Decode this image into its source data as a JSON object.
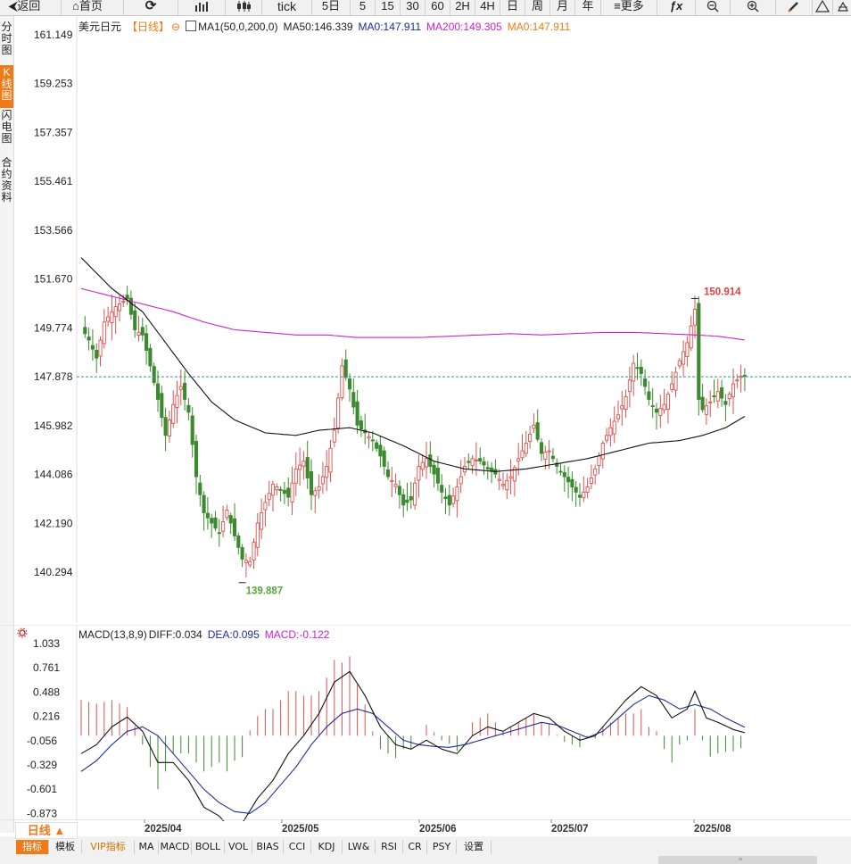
{
  "toolbar": {
    "back": "返回",
    "home": "首页",
    "refresh_icon": "refresh-icon",
    "bar_icon": "bar-chart-icon",
    "candle_icon": "candlestick-icon",
    "tick": "tick",
    "five_day": "5日",
    "m5": "5",
    "m15": "15",
    "m30": "30",
    "m60": "60",
    "h2": "2H",
    "h4": "4H",
    "day": "日",
    "week": "周",
    "month": "月",
    "year": "年",
    "more": "更多",
    "fx": "ƒx"
  },
  "left_tabs": [
    {
      "label": "分时图"
    },
    {
      "label": "K线图"
    },
    {
      "label": "闪电图"
    },
    {
      "label": "合约资料"
    }
  ],
  "legend": {
    "symbol": "美元日元",
    "period": "【日线】",
    "ma_settings": "MA1(50,0,200,0)",
    "ma50": "MA50:146.339",
    "ma0a": "MA0:147.911",
    "ma200": "MA200:149.305",
    "ma0b": "MA0:147.911"
  },
  "macd_legend": {
    "name": "MACD(13,8,9)",
    "diff": "DIFF:0.034",
    "dea": "DEA:0.095",
    "macd": "MACD:-0.122"
  },
  "bottom": {
    "period_button": "日线 ▲",
    "tabs": [
      "指标",
      "模板",
      "VIP指标",
      "MA",
      "MACD",
      "BOLL",
      "VOL",
      "BIAS",
      "CCI",
      "KDJ",
      "LW&",
      "RSI",
      "CR",
      "PSY",
      "设置"
    ]
  },
  "colors": {
    "up": "#d9534f",
    "down": "#3a8a2e",
    "ma50": "#111111",
    "ma200": "#cc22cc",
    "last_line": "#2a9d8f",
    "high_label": "#e04040",
    "low_label": "#5aa53c",
    "accent": "#f07a17",
    "dea": "#1f2a9a"
  },
  "chart_data": [
    {
      "type": "candlestick",
      "title": "美元日元【日线】",
      "y_ticks": [
        "161.149",
        "159.253",
        "157.357",
        "155.461",
        "153.566",
        "151.670",
        "149.774",
        "147.878",
        "145.982",
        "144.086",
        "142.190",
        "140.294"
      ],
      "ylim": [
        139.6,
        161.149
      ],
      "x_ticks": [
        "2025/04",
        "2025/05",
        "2025/06",
        "2025/07",
        "2025/08"
      ],
      "last_price": 147.878,
      "high_label": "150.914",
      "low_label": "139.887",
      "grid": false,
      "close_path": [
        [
          0,
          149.8
        ],
        [
          2,
          149.3
        ],
        [
          4,
          148.6
        ],
        [
          6,
          150.0
        ],
        [
          9,
          150.6
        ],
        [
          12,
          150.9
        ],
        [
          14,
          149.7
        ],
        [
          16,
          149.5
        ],
        [
          18,
          148.3
        ],
        [
          20,
          147.0
        ],
        [
          22,
          145.6
        ],
        [
          24,
          146.8
        ],
        [
          26,
          147.5
        ],
        [
          28,
          146.5
        ],
        [
          30,
          144.0
        ],
        [
          32,
          142.6
        ],
        [
          34,
          142.2
        ],
        [
          36,
          141.8
        ],
        [
          38,
          142.7
        ],
        [
          40,
          141.7
        ],
        [
          42,
          140.8
        ],
        [
          44,
          140.7
        ],
        [
          46,
          142.2
        ],
        [
          48,
          143.0
        ],
        [
          50,
          143.7
        ],
        [
          52,
          143.5
        ],
        [
          54,
          143.2
        ],
        [
          56,
          144.3
        ],
        [
          58,
          144.6
        ],
        [
          60,
          143.3
        ],
        [
          62,
          143.6
        ],
        [
          64,
          144.4
        ],
        [
          66,
          145.8
        ],
        [
          68,
          148.3
        ],
        [
          70,
          147.4
        ],
        [
          72,
          146.0
        ],
        [
          74,
          145.7
        ],
        [
          76,
          145.4
        ],
        [
          78,
          144.8
        ],
        [
          80,
          144.0
        ],
        [
          82,
          143.7
        ],
        [
          84,
          142.9
        ],
        [
          86,
          143.1
        ],
        [
          88,
          144.4
        ],
        [
          90,
          144.7
        ],
        [
          92,
          144.1
        ],
        [
          94,
          143.4
        ],
        [
          96,
          142.9
        ],
        [
          98,
          143.6
        ],
        [
          100,
          144.4
        ],
        [
          102,
          144.7
        ],
        [
          104,
          144.6
        ],
        [
          106,
          144.3
        ],
        [
          108,
          144.1
        ],
        [
          110,
          143.7
        ],
        [
          112,
          144.0
        ],
        [
          114,
          144.7
        ],
        [
          116,
          145.3
        ],
        [
          118,
          146.0
        ],
        [
          120,
          144.9
        ],
        [
          122,
          145.0
        ],
        [
          124,
          144.4
        ],
        [
          126,
          144.0
        ],
        [
          128,
          143.6
        ],
        [
          130,
          143.2
        ],
        [
          132,
          143.6
        ],
        [
          134,
          144.3
        ],
        [
          136,
          145.3
        ],
        [
          138,
          145.9
        ],
        [
          140,
          146.4
        ],
        [
          142,
          147.1
        ],
        [
          144,
          148.4
        ],
        [
          146,
          148.0
        ],
        [
          148,
          147.0
        ],
        [
          150,
          146.5
        ],
        [
          152,
          146.8
        ],
        [
          154,
          147.6
        ],
        [
          156,
          148.5
        ],
        [
          158,
          149.2
        ],
        [
          160,
          150.5
        ],
        [
          161,
          147.0
        ],
        [
          162,
          146.6
        ],
        [
          164,
          146.9
        ],
        [
          166,
          147.3
        ],
        [
          168,
          146.8
        ],
        [
          170,
          147.6
        ],
        [
          172,
          147.9
        ],
        [
          173,
          147.9
        ]
      ],
      "ma50": [
        [
          0,
          152.5
        ],
        [
          8,
          151.3
        ],
        [
          16,
          150.4
        ],
        [
          22,
          149.2
        ],
        [
          28,
          148.0
        ],
        [
          34,
          146.9
        ],
        [
          40,
          146.2
        ],
        [
          48,
          145.7
        ],
        [
          56,
          145.6
        ],
        [
          62,
          145.8
        ],
        [
          70,
          145.9
        ],
        [
          76,
          145.7
        ],
        [
          84,
          145.2
        ],
        [
          92,
          144.6
        ],
        [
          100,
          144.3
        ],
        [
          108,
          144.2
        ],
        [
          116,
          144.3
        ],
        [
          124,
          144.5
        ],
        [
          132,
          144.7
        ],
        [
          140,
          145.0
        ],
        [
          148,
          145.3
        ],
        [
          156,
          145.4
        ],
        [
          162,
          145.6
        ],
        [
          168,
          145.9
        ],
        [
          173,
          146.34
        ]
      ],
      "ma200": [
        [
          0,
          151.3
        ],
        [
          8,
          151.0
        ],
        [
          16,
          150.7
        ],
        [
          24,
          150.4
        ],
        [
          32,
          150.0
        ],
        [
          40,
          149.7
        ],
        [
          48,
          149.6
        ],
        [
          56,
          149.5
        ],
        [
          64,
          149.5
        ],
        [
          72,
          149.4
        ],
        [
          80,
          149.4
        ],
        [
          88,
          149.4
        ],
        [
          96,
          149.45
        ],
        [
          104,
          149.5
        ],
        [
          112,
          149.55
        ],
        [
          120,
          149.5
        ],
        [
          128,
          149.55
        ],
        [
          136,
          149.6
        ],
        [
          144,
          149.6
        ],
        [
          152,
          149.55
        ],
        [
          160,
          149.5
        ],
        [
          166,
          149.45
        ],
        [
          173,
          149.305
        ]
      ]
    },
    {
      "type": "macd",
      "title": "MACD(13,8,9)",
      "y_ticks": [
        "1.033",
        "0.761",
        "0.488",
        "0.216",
        "-0.056",
        "-0.329",
        "-0.601",
        "-0.873"
      ],
      "ylim": [
        -1.09,
        1.15
      ],
      "diff": [
        [
          0,
          -0.2
        ],
        [
          4,
          -0.1
        ],
        [
          8,
          0.1
        ],
        [
          12,
          0.21
        ],
        [
          16,
          0.05
        ],
        [
          20,
          -0.3
        ],
        [
          24,
          -0.3
        ],
        [
          28,
          -0.5
        ],
        [
          32,
          -0.8
        ],
        [
          36,
          -0.9
        ],
        [
          38,
          -1.0
        ],
        [
          42,
          -0.98
        ],
        [
          46,
          -0.7
        ],
        [
          50,
          -0.5
        ],
        [
          54,
          -0.2
        ],
        [
          58,
          0.0
        ],
        [
          62,
          0.25
        ],
        [
          66,
          0.6
        ],
        [
          70,
          0.72
        ],
        [
          74,
          0.45
        ],
        [
          78,
          0.1
        ],
        [
          82,
          -0.1
        ],
        [
          86,
          -0.15
        ],
        [
          90,
          -0.05
        ],
        [
          94,
          -0.15
        ],
        [
          98,
          -0.2
        ],
        [
          102,
          0.0
        ],
        [
          106,
          0.1
        ],
        [
          110,
          0.05
        ],
        [
          114,
          0.15
        ],
        [
          118,
          0.25
        ],
        [
          122,
          0.2
        ],
        [
          126,
          0.05
        ],
        [
          130,
          -0.05
        ],
        [
          134,
          0.0
        ],
        [
          138,
          0.2
        ],
        [
          142,
          0.4
        ],
        [
          146,
          0.55
        ],
        [
          150,
          0.45
        ],
        [
          154,
          0.2
        ],
        [
          158,
          0.3
        ],
        [
          160,
          0.5
        ],
        [
          163,
          0.2
        ],
        [
          166,
          0.15
        ],
        [
          170,
          0.07
        ],
        [
          173,
          0.034
        ]
      ],
      "dea": [
        [
          0,
          -0.4
        ],
        [
          4,
          -0.28
        ],
        [
          8,
          -0.1
        ],
        [
          12,
          0.05
        ],
        [
          16,
          0.1
        ],
        [
          20,
          0.0
        ],
        [
          24,
          -0.2
        ],
        [
          28,
          -0.4
        ],
        [
          32,
          -0.6
        ],
        [
          36,
          -0.75
        ],
        [
          40,
          -0.85
        ],
        [
          44,
          -0.87
        ],
        [
          48,
          -0.75
        ],
        [
          52,
          -0.55
        ],
        [
          56,
          -0.35
        ],
        [
          60,
          -0.1
        ],
        [
          64,
          0.1
        ],
        [
          68,
          0.25
        ],
        [
          72,
          0.3
        ],
        [
          76,
          0.25
        ],
        [
          80,
          0.1
        ],
        [
          84,
          -0.05
        ],
        [
          88,
          -0.1
        ],
        [
          92,
          -0.12
        ],
        [
          96,
          -0.13
        ],
        [
          100,
          -0.1
        ],
        [
          104,
          -0.05
        ],
        [
          108,
          0.0
        ],
        [
          112,
          0.05
        ],
        [
          116,
          0.1
        ],
        [
          120,
          0.15
        ],
        [
          124,
          0.12
        ],
        [
          128,
          0.05
        ],
        [
          132,
          -0.02
        ],
        [
          136,
          0.05
        ],
        [
          140,
          0.2
        ],
        [
          144,
          0.35
        ],
        [
          148,
          0.45
        ],
        [
          152,
          0.4
        ],
        [
          156,
          0.3
        ],
        [
          160,
          0.35
        ],
        [
          164,
          0.3
        ],
        [
          168,
          0.2
        ],
        [
          173,
          0.095
        ]
      ]
    }
  ]
}
